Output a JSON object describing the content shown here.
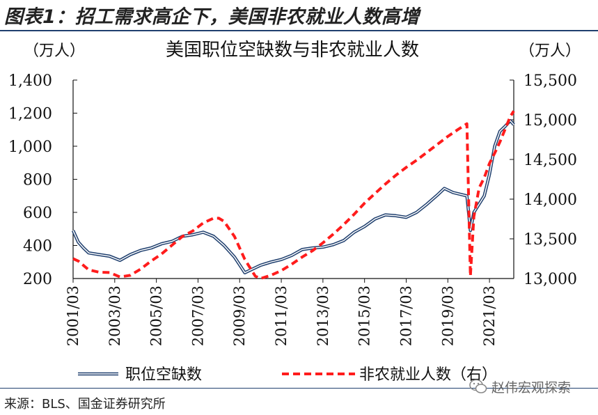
{
  "figure": {
    "title": "图表1：招工需求高企下，美国非农就业人数高增",
    "source": "来源：BLS、国金证券研究所",
    "watermark": "赵伟宏观探索",
    "watermark_icon": "wechat-icon"
  },
  "chart_data": {
    "type": "line",
    "title": "美国职位空缺数与非农就业人数",
    "left_unit": "（万人）",
    "right_unit": "（万人）",
    "x_ticks": [
      "2001/03",
      "2003/03",
      "2005/03",
      "2007/03",
      "2009/03",
      "2011/03",
      "2013/03",
      "2015/03",
      "2017/03",
      "2019/03",
      "2021/03"
    ],
    "y_left": {
      "ticks": [
        200,
        400,
        600,
        800,
        1000,
        1200,
        1400
      ],
      "tick_labels": [
        "200",
        "400",
        "600",
        "800",
        "1,000",
        "1,200",
        "1,400"
      ],
      "lim": [
        200,
        1400
      ]
    },
    "y_right": {
      "ticks": [
        13000,
        13500,
        14000,
        14500,
        15000,
        15500
      ],
      "tick_labels": [
        "13,000",
        "13,500",
        "14,000",
        "14,500",
        "15,000",
        "15,500"
      ],
      "lim": [
        13000,
        15500
      ]
    },
    "x_range": [
      "2001-03",
      "2022-05"
    ],
    "grid": false,
    "legend_position": "bottom",
    "series": [
      {
        "name": "职位空缺数",
        "axis": "left",
        "style": "double-line",
        "color": "#1f3f6e",
        "points": [
          [
            "2001-03",
            490
          ],
          [
            "2001-06",
            420
          ],
          [
            "2001-09",
            385
          ],
          [
            "2001-12",
            355
          ],
          [
            "2002-06",
            345
          ],
          [
            "2002-12",
            335
          ],
          [
            "2003-06",
            310
          ],
          [
            "2003-12",
            345
          ],
          [
            "2004-06",
            370
          ],
          [
            "2004-12",
            385
          ],
          [
            "2005-06",
            410
          ],
          [
            "2005-12",
            425
          ],
          [
            "2006-06",
            455
          ],
          [
            "2006-12",
            465
          ],
          [
            "2007-06",
            480
          ],
          [
            "2007-12",
            455
          ],
          [
            "2008-06",
            400
          ],
          [
            "2008-12",
            330
          ],
          [
            "2009-06",
            235
          ],
          [
            "2009-09",
            250
          ],
          [
            "2010-03",
            280
          ],
          [
            "2010-09",
            300
          ],
          [
            "2011-03",
            315
          ],
          [
            "2011-09",
            340
          ],
          [
            "2012-03",
            375
          ],
          [
            "2012-09",
            385
          ],
          [
            "2013-03",
            390
          ],
          [
            "2013-09",
            405
          ],
          [
            "2014-03",
            430
          ],
          [
            "2014-09",
            480
          ],
          [
            "2015-03",
            515
          ],
          [
            "2015-09",
            560
          ],
          [
            "2016-03",
            585
          ],
          [
            "2016-09",
            580
          ],
          [
            "2017-03",
            570
          ],
          [
            "2017-09",
            600
          ],
          [
            "2018-03",
            650
          ],
          [
            "2018-09",
            705
          ],
          [
            "2019-01",
            745
          ],
          [
            "2019-06",
            720
          ],
          [
            "2019-12",
            705
          ],
          [
            "2020-02",
            700
          ],
          [
            "2020-04",
            490
          ],
          [
            "2020-06",
            600
          ],
          [
            "2020-09",
            650
          ],
          [
            "2020-12",
            700
          ],
          [
            "2021-03",
            830
          ],
          [
            "2021-06",
            1000
          ],
          [
            "2021-09",
            1090
          ],
          [
            "2021-12",
            1120
          ],
          [
            "2022-03",
            1155
          ],
          [
            "2022-05",
            1130
          ]
        ]
      },
      {
        "name": "非农就业人数（右）",
        "axis": "right",
        "style": "dashed",
        "color": "#ff1c1c",
        "points": [
          [
            "2001-03",
            13250
          ],
          [
            "2001-06",
            13220
          ],
          [
            "2001-12",
            13110
          ],
          [
            "2002-06",
            13080
          ],
          [
            "2002-12",
            13075
          ],
          [
            "2003-06",
            13020
          ],
          [
            "2003-12",
            13040
          ],
          [
            "2004-06",
            13120
          ],
          [
            "2004-12",
            13220
          ],
          [
            "2005-06",
            13310
          ],
          [
            "2005-12",
            13420
          ],
          [
            "2006-06",
            13530
          ],
          [
            "2006-12",
            13600
          ],
          [
            "2007-06",
            13700
          ],
          [
            "2007-12",
            13760
          ],
          [
            "2008-03",
            13760
          ],
          [
            "2008-06",
            13720
          ],
          [
            "2008-12",
            13530
          ],
          [
            "2009-06",
            13240
          ],
          [
            "2009-12",
            13030
          ],
          [
            "2010-03",
            13000
          ],
          [
            "2010-09",
            13040
          ],
          [
            "2011-03",
            13100
          ],
          [
            "2011-09",
            13180
          ],
          [
            "2012-03",
            13270
          ],
          [
            "2012-09",
            13350
          ],
          [
            "2013-03",
            13450
          ],
          [
            "2013-09",
            13560
          ],
          [
            "2014-03",
            13680
          ],
          [
            "2014-09",
            13810
          ],
          [
            "2015-03",
            13950
          ],
          [
            "2015-09",
            14070
          ],
          [
            "2016-03",
            14190
          ],
          [
            "2016-09",
            14300
          ],
          [
            "2017-03",
            14400
          ],
          [
            "2017-09",
            14490
          ],
          [
            "2018-03",
            14590
          ],
          [
            "2018-09",
            14690
          ],
          [
            "2019-03",
            14790
          ],
          [
            "2019-09",
            14880
          ],
          [
            "2020-02",
            14950
          ],
          [
            "2020-04",
            13030
          ],
          [
            "2020-06",
            13780
          ],
          [
            "2020-09",
            14140
          ],
          [
            "2020-12",
            14270
          ],
          [
            "2021-03",
            14450
          ],
          [
            "2021-06",
            14580
          ],
          [
            "2021-09",
            14720
          ],
          [
            "2021-12",
            14880
          ],
          [
            "2022-03",
            15040
          ],
          [
            "2022-05",
            15110
          ]
        ]
      }
    ]
  }
}
